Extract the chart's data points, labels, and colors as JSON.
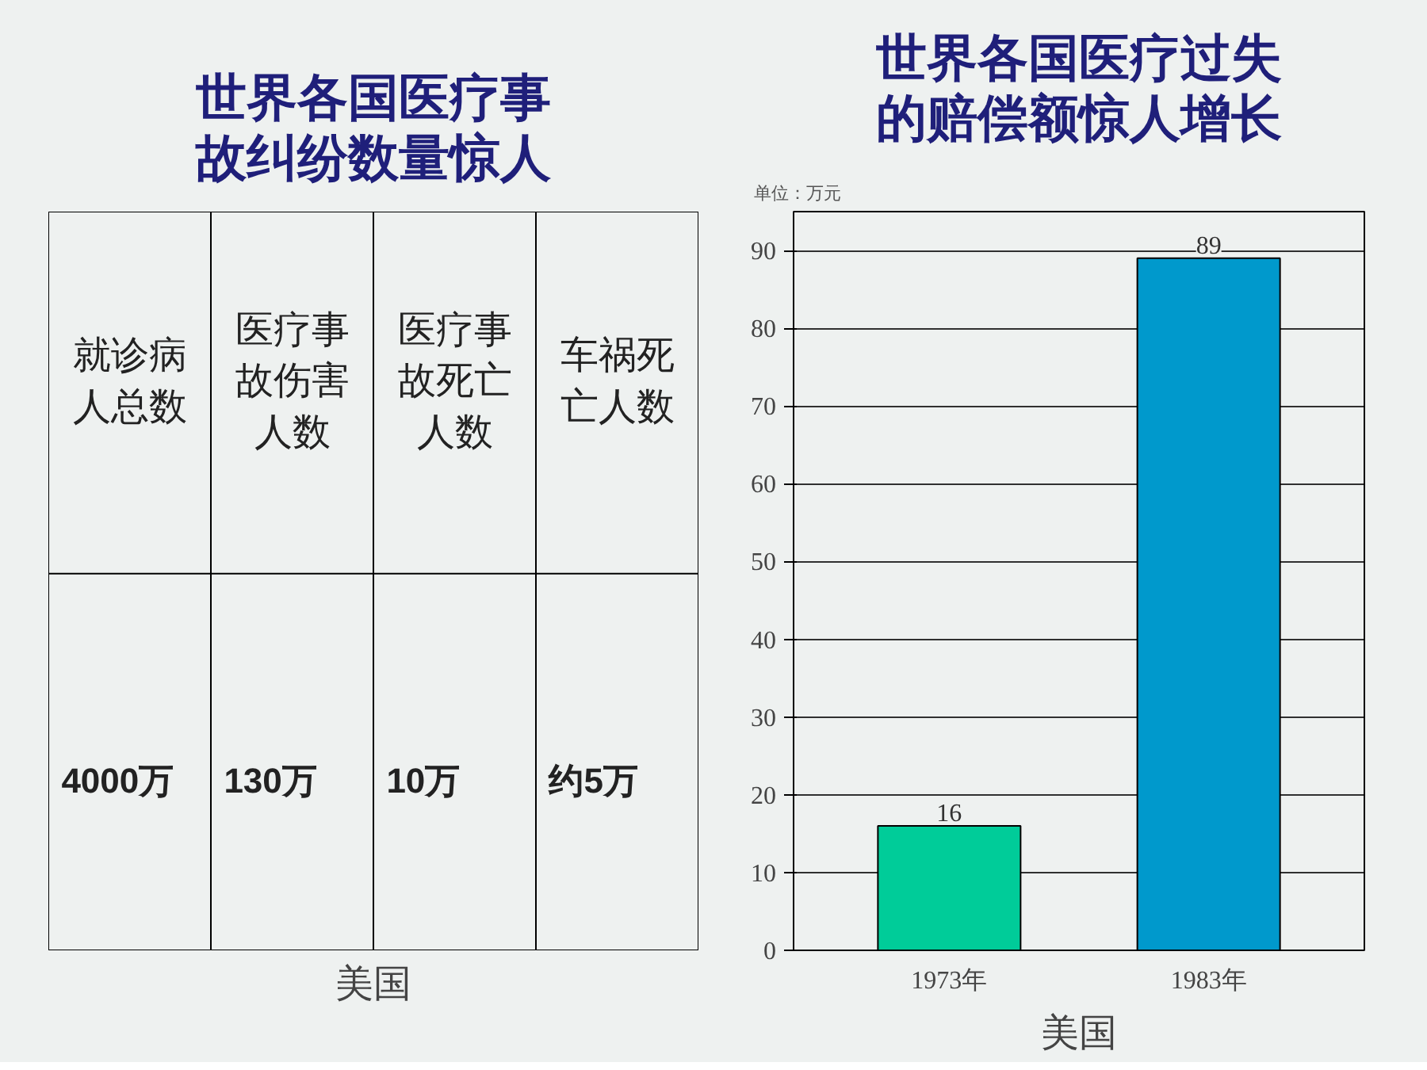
{
  "chart_data": [
    {
      "type": "other",
      "title": "世界各国医疗事故纠纷数量惊人",
      "categories": [
        "就诊病人总数",
        "医疗事故伤害人数",
        "医疗事故死亡人数",
        "车祸死亡人数"
      ],
      "values": [
        4000,
        130,
        10,
        5
      ],
      "value_labels": [
        "4000万",
        "130万",
        "10万",
        "约5万"
      ],
      "annotations": [
        "美国"
      ]
    },
    {
      "type": "bar",
      "title": "世界各国医疗过失的赔偿额惊人增长",
      "ylabel": "单位：万元",
      "categories": [
        "1973年",
        "1983年"
      ],
      "values": [
        16,
        89
      ],
      "colors": [
        "#00cc99",
        "#0099cc"
      ],
      "ylim": [
        0,
        95
      ],
      "yticks": [
        0,
        10,
        20,
        30,
        40,
        50,
        60,
        70,
        80,
        90
      ],
      "grid": "y",
      "data_labels": true,
      "annotations": [
        "美国"
      ]
    }
  ]
}
